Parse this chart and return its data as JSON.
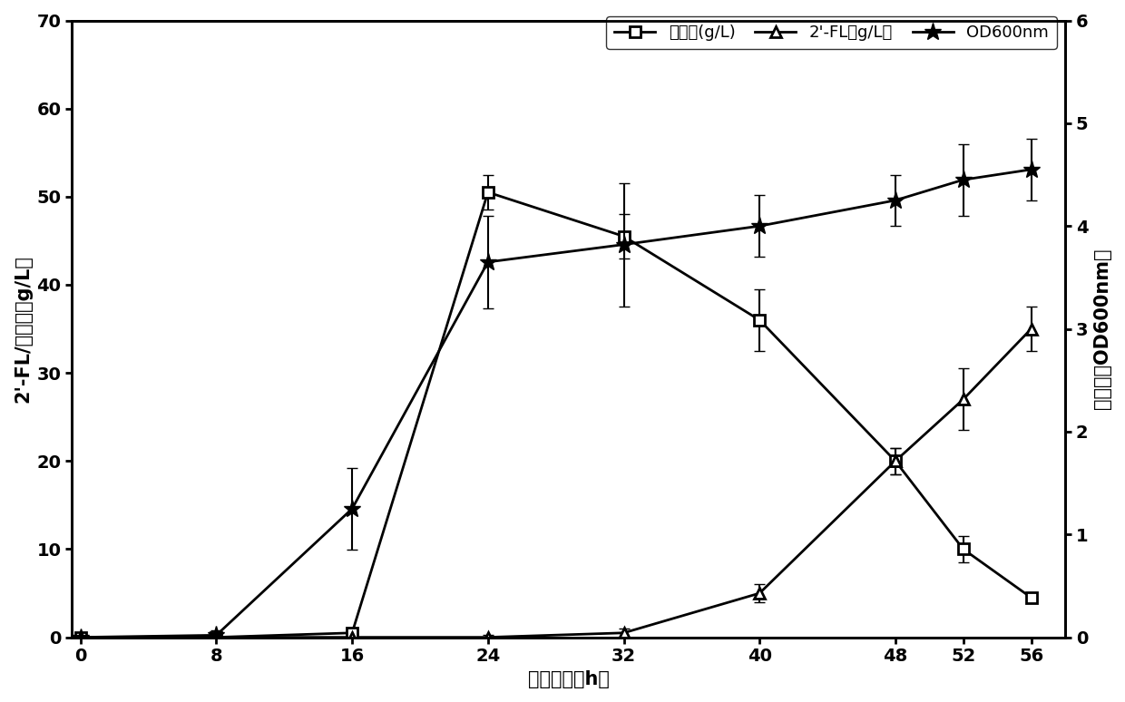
{
  "x": [
    0,
    8,
    16,
    24,
    32,
    40,
    48,
    52,
    56
  ],
  "lactose_y": [
    0,
    0,
    0.5,
    50.5,
    45.5,
    36,
    20,
    10,
    4.5
  ],
  "lactose_yerr": [
    0,
    0.2,
    0.5,
    2.0,
    2.5,
    3.5,
    1.5,
    1.5,
    0.5
  ],
  "fl2_y": [
    0,
    0,
    0,
    0,
    0.5,
    5,
    20,
    27,
    35
  ],
  "fl2_yerr": [
    0,
    0.2,
    0.2,
    0.3,
    0.5,
    1.0,
    1.5,
    3.5,
    2.5
  ],
  "od_y": [
    0,
    0.02,
    1.25,
    3.65,
    3.82,
    4.0,
    4.25,
    4.45,
    4.55
  ],
  "od_yerr": [
    0,
    0.05,
    0.4,
    0.45,
    0.6,
    0.3,
    0.25,
    0.35,
    0.3
  ],
  "left_ylim": [
    0,
    70
  ],
  "right_ylim": [
    0,
    6
  ],
  "left_yticks": [
    0,
    10,
    20,
    30,
    40,
    50,
    60,
    70
  ],
  "right_yticks": [
    0,
    1,
    2,
    3,
    4,
    5,
    6
  ],
  "xticks": [
    0,
    8,
    16,
    24,
    32,
    40,
    48,
    52,
    56
  ],
  "xlabel": "发酵时间（h）",
  "ylabel_left": "2'-FL/乳糖量（g/L）",
  "ylabel_right": "菌体量（OD600nm）",
  "legend_lactose": "乳糖量(g/L)",
  "legend_fl2": "2'-FL（g/L）",
  "legend_od": "OD600nm",
  "color": "#000000",
  "background": "#ffffff",
  "linewidth": 2.0,
  "capsize": 4,
  "fontsize_label": 15,
  "fontsize_tick": 14,
  "fontsize_legend": 13
}
